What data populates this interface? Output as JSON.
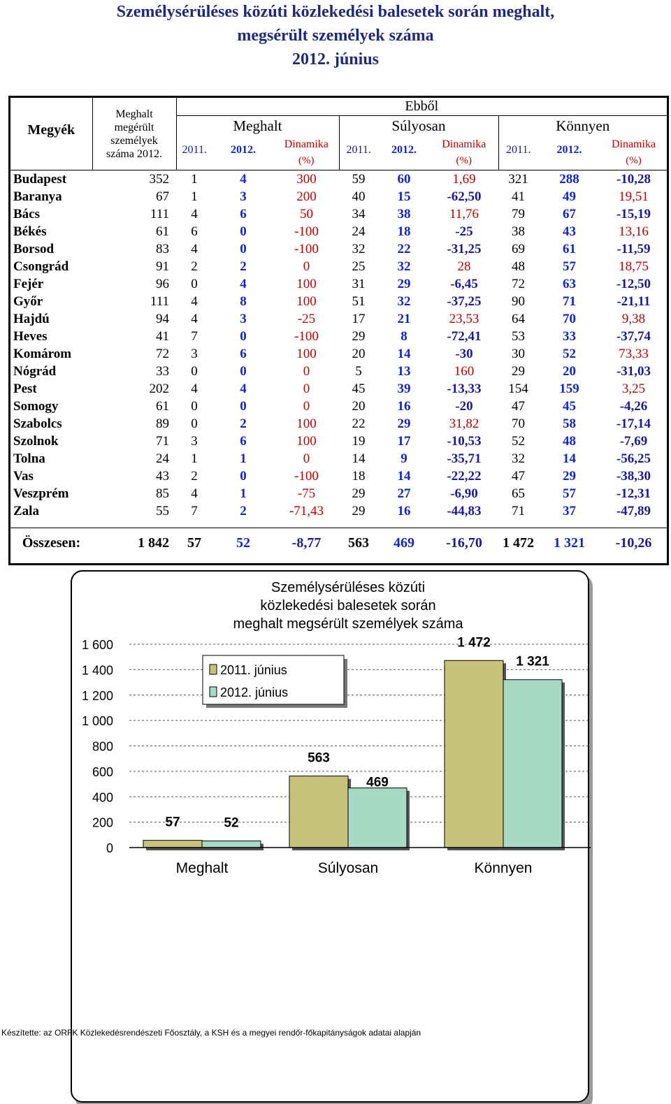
{
  "title": {
    "line1": "Személysérüléses közúti közlekedési balesetek során meghalt,",
    "line2": "megsérült személyek száma",
    "line3": "2012. június"
  },
  "table": {
    "header": {
      "megyek": "Megyék",
      "total_col": [
        "Meghalt",
        "megérült",
        "személyek",
        "száma 2012."
      ],
      "ebbol": "Ebből",
      "meghalt": "Meghalt",
      "sulyosan": "Súlyosan",
      "konnyen": "Könnyen",
      "y2011": "2011.",
      "y2012": "2012.",
      "dinamika": "Dinamika",
      "pct": "(%)"
    },
    "rows": [
      [
        "Budapest",
        "352",
        "1",
        "4",
        "300",
        "59",
        "60",
        "1,69",
        "321",
        "288",
        "-10,28"
      ],
      [
        "Baranya",
        "67",
        "1",
        "3",
        "200",
        "40",
        "15",
        "-62,50",
        "41",
        "49",
        "19,51"
      ],
      [
        "Bács",
        "111",
        "4",
        "6",
        "50",
        "34",
        "38",
        "11,76",
        "79",
        "67",
        "-15,19"
      ],
      [
        "Békés",
        "61",
        "6",
        "0",
        "-100",
        "24",
        "18",
        "-25",
        "38",
        "43",
        "13,16"
      ],
      [
        "Borsod",
        "83",
        "4",
        "0",
        "-100",
        "32",
        "22",
        "-31,25",
        "69",
        "61",
        "-11,59"
      ],
      [
        "Csongrád",
        "91",
        "2",
        "2",
        "0",
        "25",
        "32",
        "28",
        "48",
        "57",
        "18,75"
      ],
      [
        "Fejér",
        "96",
        "0",
        "4",
        "100",
        "31",
        "29",
        "-6,45",
        "72",
        "63",
        "-12,50"
      ],
      [
        "Győr",
        "111",
        "4",
        "8",
        "100",
        "51",
        "32",
        "-37,25",
        "90",
        "71",
        "-21,11"
      ],
      [
        "Hajdú",
        "94",
        "4",
        "3",
        "-25",
        "17",
        "21",
        "23,53",
        "64",
        "70",
        "9,38"
      ],
      [
        "Heves",
        "41",
        "7",
        "0",
        "-100",
        "29",
        "8",
        "-72,41",
        "53",
        "33",
        "-37,74"
      ],
      [
        "Komárom",
        "72",
        "3",
        "6",
        "100",
        "20",
        "14",
        "-30",
        "30",
        "52",
        "73,33"
      ],
      [
        "Nógrád",
        "33",
        "0",
        "0",
        "0",
        "5",
        "13",
        "160",
        "29",
        "20",
        "-31,03"
      ],
      [
        "Pest",
        "202",
        "4",
        "4",
        "0",
        "45",
        "39",
        "-13,33",
        "154",
        "159",
        "3,25"
      ],
      [
        "Somogy",
        "61",
        "0",
        "0",
        "0",
        "20",
        "16",
        "-20",
        "47",
        "45",
        "-4,26"
      ],
      [
        "Szabolcs",
        "89",
        "0",
        "2",
        "100",
        "22",
        "29",
        "31,82",
        "70",
        "58",
        "-17,14"
      ],
      [
        "Szolnok",
        "71",
        "3",
        "6",
        "100",
        "19",
        "17",
        "-10,53",
        "52",
        "48",
        "-7,69"
      ],
      [
        "Tolna",
        "24",
        "1",
        "1",
        "0",
        "14",
        "9",
        "-35,71",
        "32",
        "14",
        "-56,25"
      ],
      [
        "Vas",
        "43",
        "2",
        "0",
        "-100",
        "18",
        "14",
        "-22,22",
        "47",
        "29",
        "-38,30"
      ],
      [
        "Veszprém",
        "85",
        "4",
        "1",
        "-75",
        "29",
        "27",
        "-6,90",
        "65",
        "57",
        "-12,31"
      ],
      [
        "Zala",
        "55",
        "7",
        "2",
        "-71,43",
        "29",
        "16",
        "-44,83",
        "71",
        "37",
        "-47,89"
      ]
    ],
    "total": [
      "Összesen:",
      "1 842",
      "57",
      "52",
      "-8,77",
      "563",
      "469",
      "-16,70",
      "1 472",
      "1 321",
      "-10,26"
    ]
  },
  "chart_data": {
    "type": "bar",
    "title": "Személysérüléses közúti közlekedési balesetek során meghalt megsérült személyek száma",
    "title_lines": [
      "Személysérüléses közúti",
      "közlekedési balesetek során",
      "meghalt megsérült személyek száma"
    ],
    "categories": [
      "Meghalt",
      "Súlyosan",
      "Könnyen"
    ],
    "series": [
      {
        "name": "2011. június",
        "values": [
          57,
          563,
          1472
        ],
        "labels": [
          "57",
          "563",
          "1 472"
        ],
        "color": "#c8c27a"
      },
      {
        "name": "2012. június",
        "values": [
          52,
          469,
          1321
        ],
        "labels": [
          "52",
          "469",
          "1 321"
        ],
        "color": "#a8d9c4"
      }
    ],
    "yticks": [
      "0",
      "200",
      "400",
      "600",
      "800",
      "1 000",
      "1 200",
      "1 400",
      "1 600"
    ],
    "ylim": [
      0,
      1600
    ],
    "grid": true,
    "legend": "top-left"
  },
  "footer": "Készítette: az ORFK  Közlekedésrendészeti Főosztály, a KSH és a megyei rendőr-főkapitányságok adatai alapján"
}
